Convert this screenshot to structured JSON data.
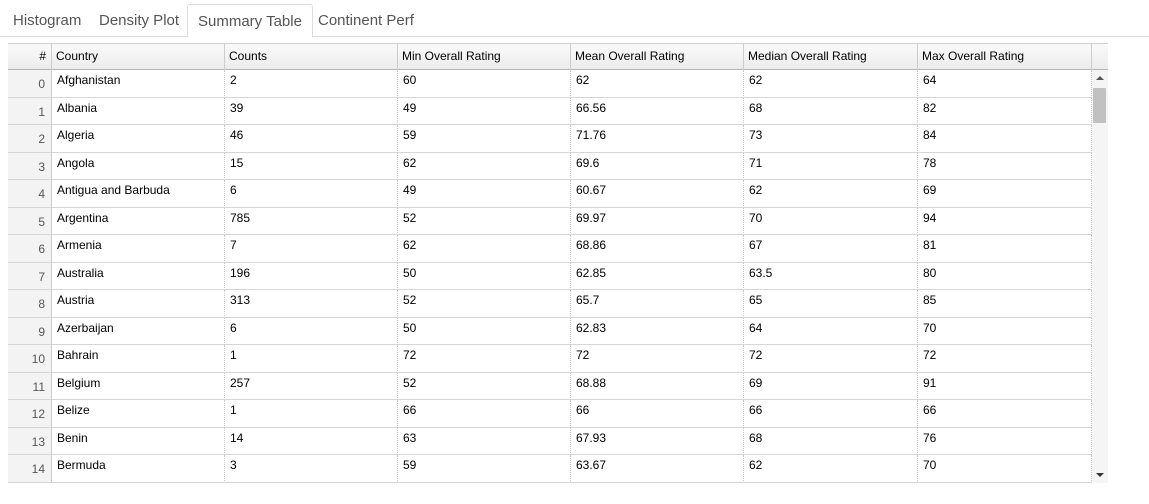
{
  "tabs": [
    {
      "label": "Histogram"
    },
    {
      "label": "Density Plot"
    },
    {
      "label": "Summary Table",
      "active": true
    },
    {
      "label": "Continent Perf"
    }
  ],
  "table": {
    "index_header": "#",
    "columns": [
      "Country",
      "Counts",
      "Min Overall Rating",
      "Mean Overall Rating",
      "Median Overall Rating",
      "Max Overall Rating"
    ],
    "rows": [
      {
        "index": "0",
        "cells": [
          "Afghanistan",
          "2",
          "60",
          "62",
          "62",
          "64"
        ]
      },
      {
        "index": "1",
        "cells": [
          "Albania",
          "39",
          "49",
          "66.56",
          "68",
          "82"
        ]
      },
      {
        "index": "2",
        "cells": [
          "Algeria",
          "46",
          "59",
          "71.76",
          "73",
          "84"
        ]
      },
      {
        "index": "3",
        "cells": [
          "Angola",
          "15",
          "62",
          "69.6",
          "71",
          "78"
        ]
      },
      {
        "index": "4",
        "cells": [
          "Antigua and Barbuda",
          "6",
          "49",
          "60.67",
          "62",
          "69"
        ]
      },
      {
        "index": "5",
        "cells": [
          "Argentina",
          "785",
          "52",
          "69.97",
          "70",
          "94"
        ]
      },
      {
        "index": "6",
        "cells": [
          "Armenia",
          "7",
          "62",
          "68.86",
          "67",
          "81"
        ]
      },
      {
        "index": "7",
        "cells": [
          "Australia",
          "196",
          "50",
          "62.85",
          "63.5",
          "80"
        ]
      },
      {
        "index": "8",
        "cells": [
          "Austria",
          "313",
          "52",
          "65.7",
          "65",
          "85"
        ]
      },
      {
        "index": "9",
        "cells": [
          "Azerbaijan",
          "6",
          "50",
          "62.83",
          "64",
          "70"
        ]
      },
      {
        "index": "10",
        "cells": [
          "Bahrain",
          "1",
          "72",
          "72",
          "72",
          "72"
        ]
      },
      {
        "index": "11",
        "cells": [
          "Belgium",
          "257",
          "52",
          "68.88",
          "69",
          "91"
        ]
      },
      {
        "index": "12",
        "cells": [
          "Belize",
          "1",
          "66",
          "66",
          "66",
          "66"
        ]
      },
      {
        "index": "13",
        "cells": [
          "Benin",
          "14",
          "63",
          "67.93",
          "68",
          "76"
        ]
      },
      {
        "index": "14",
        "cells": [
          "Bermuda",
          "3",
          "59",
          "63.67",
          "62",
          "70"
        ]
      }
    ]
  },
  "scrollbar": {
    "up_icon": "arrow-up-icon",
    "down_icon": "arrow-down-icon"
  }
}
